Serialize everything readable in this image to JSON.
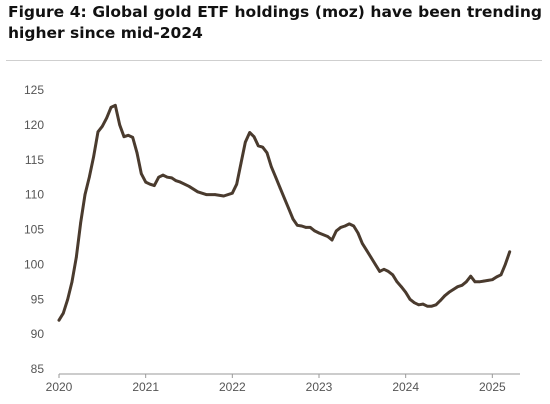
{
  "figure": {
    "title": "Figure 4: Global gold ETF holdings (moz) have been trending higher since mid-2024"
  },
  "chart_data": {
    "type": "line",
    "title": "Figure 4: Global gold ETF holdings (moz) have been trending higher since mid-2024",
    "xlabel": "",
    "ylabel": "",
    "xlim": [
      2020.0,
      2025.25
    ],
    "ylim": [
      85,
      125
    ],
    "yticks": [
      85,
      90,
      95,
      100,
      105,
      110,
      115,
      120,
      125
    ],
    "xticks": [
      "2020",
      "2021",
      "2022",
      "2023",
      "2024",
      "2025"
    ],
    "grid": false,
    "legend": "none",
    "line_color": "#4a3b2e",
    "series": [
      {
        "x": [
          2020.0,
          2020.05,
          2020.1,
          2020.15,
          2020.2,
          2020.25,
          2020.3,
          2020.35,
          2020.4,
          2020.45,
          2020.5,
          2020.55,
          2020.6,
          2020.65,
          2020.7,
          2020.75,
          2020.8,
          2020.85,
          2020.9,
          2020.95,
          2021.0,
          2021.05,
          2021.1,
          2021.15,
          2021.2,
          2021.25,
          2021.3,
          2021.35,
          2021.4,
          2021.5,
          2021.6,
          2021.7,
          2021.8,
          2021.9,
          2022.0,
          2022.05,
          2022.1,
          2022.15,
          2022.2,
          2022.25,
          2022.3,
          2022.35,
          2022.4,
          2022.45,
          2022.5,
          2022.55,
          2022.6,
          2022.65,
          2022.7,
          2022.75,
          2022.8,
          2022.85,
          2022.9,
          2022.95,
          2023.0,
          2023.1,
          2023.15,
          2023.2,
          2023.25,
          2023.3,
          2023.35,
          2023.4,
          2023.45,
          2023.5,
          2023.55,
          2023.6,
          2023.65,
          2023.7,
          2023.75,
          2023.8,
          2023.85,
          2023.9,
          2023.95,
          2024.0,
          2024.05,
          2024.1,
          2024.15,
          2024.2,
          2024.25,
          2024.3,
          2024.35,
          2024.4,
          2024.45,
          2024.5,
          2024.55,
          2024.6,
          2024.65,
          2024.7,
          2024.75,
          2024.8,
          2024.85,
          2024.9,
          2024.95,
          2025.0,
          2025.05,
          2025.1,
          2025.15,
          2025.2
        ],
        "values": [
          92.0,
          93.0,
          95.0,
          97.5,
          101.0,
          106.0,
          110.0,
          112.5,
          115.5,
          119.0,
          119.8,
          121.0,
          122.5,
          122.8,
          120.0,
          118.3,
          118.5,
          118.2,
          116.0,
          113.0,
          111.8,
          111.5,
          111.3,
          112.5,
          112.8,
          112.5,
          112.4,
          112.0,
          111.8,
          111.2,
          110.4,
          110.0,
          110.0,
          109.8,
          110.2,
          111.5,
          114.5,
          117.5,
          118.9,
          118.3,
          117.0,
          116.8,
          116.0,
          114.0,
          112.5,
          111.0,
          109.5,
          108.0,
          106.5,
          105.6,
          105.5,
          105.3,
          105.3,
          104.8,
          104.5,
          104.0,
          103.5,
          104.8,
          105.3,
          105.5,
          105.8,
          105.5,
          104.5,
          103.0,
          102.0,
          101.0,
          100.0,
          99.0,
          99.3,
          99.0,
          98.5,
          97.5,
          96.8,
          96.0,
          95.0,
          94.5,
          94.2,
          94.3,
          94.0,
          94.0,
          94.2,
          94.8,
          95.5,
          96.0,
          96.4,
          96.8,
          97.0,
          97.5,
          98.3,
          97.5,
          97.5,
          97.6,
          97.7,
          97.8,
          98.2,
          98.5,
          100.0,
          101.8
        ]
      }
    ]
  }
}
